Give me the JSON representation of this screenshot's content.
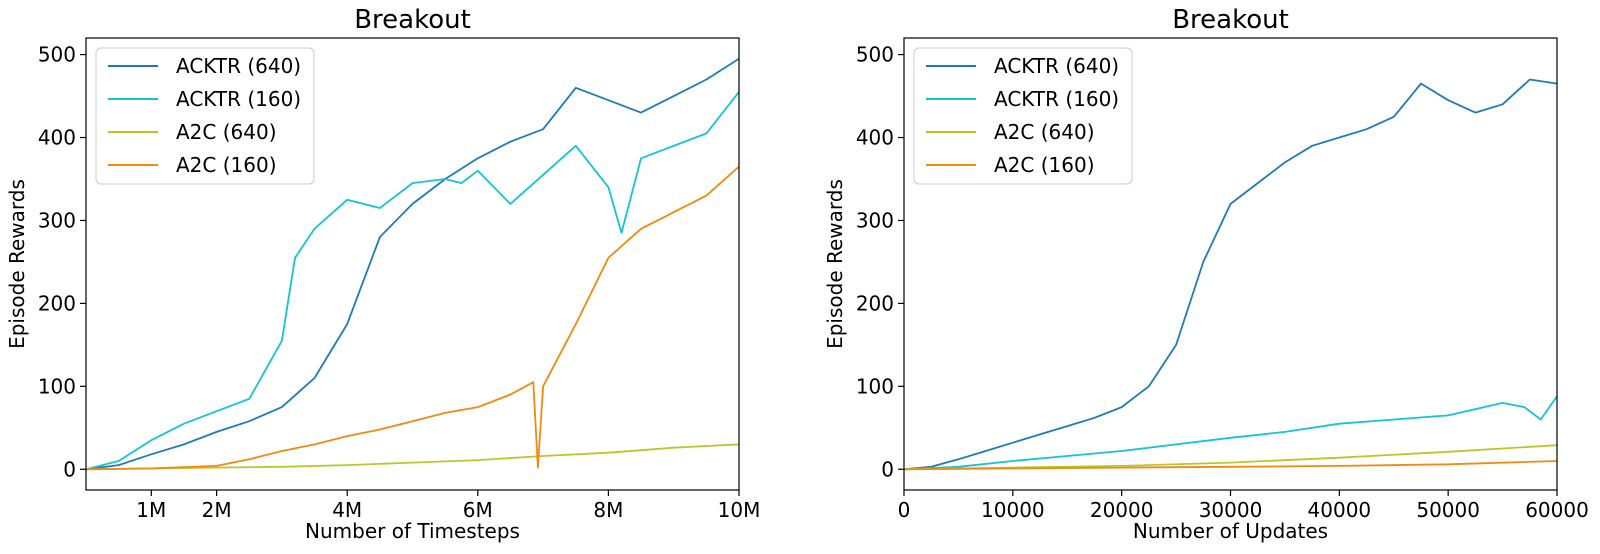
{
  "colors": {
    "ACKTR (640)": "#1f7bb5",
    "ACKTR (160)": "#17c3cf",
    "A2C (640)": "#bcc62a",
    "A2C (160)": "#f08a10"
  },
  "chart_data": [
    {
      "type": "line",
      "title": "Breakout",
      "xlabel": "Number of Timesteps",
      "ylabel": "Episode Rewards",
      "xlim": [
        0,
        10000000
      ],
      "ylim": [
        -25,
        520
      ],
      "xticks": [
        {
          "value": 1000000,
          "label": "1M"
        },
        {
          "value": 2000000,
          "label": "2M"
        },
        {
          "value": 4000000,
          "label": "4M"
        },
        {
          "value": 6000000,
          "label": "6M"
        },
        {
          "value": 8000000,
          "label": "8M"
        },
        {
          "value": 10000000,
          "label": "10M"
        }
      ],
      "yticks": [
        {
          "value": 0,
          "label": "0"
        },
        {
          "value": 100,
          "label": "100"
        },
        {
          "value": 200,
          "label": "200"
        },
        {
          "value": 300,
          "label": "300"
        },
        {
          "value": 400,
          "label": "400"
        },
        {
          "value": 500,
          "label": "500"
        }
      ],
      "grid": false,
      "legend": "top-left",
      "series": [
        {
          "name": "ACKTR (640)",
          "x": [
            0,
            500000,
            1000000,
            1500000,
            2000000,
            2500000,
            3000000,
            3500000,
            4000000,
            4500000,
            5000000,
            5500000,
            6000000,
            6500000,
            7000000,
            7500000,
            8000000,
            8500000,
            9000000,
            9500000,
            10000000
          ],
          "y": [
            0,
            5,
            18,
            30,
            45,
            58,
            75,
            110,
            175,
            280,
            320,
            350,
            375,
            395,
            410,
            460,
            445,
            430,
            450,
            470,
            495
          ]
        },
        {
          "name": "ACKTR (160)",
          "x": [
            0,
            500000,
            1000000,
            1500000,
            2000000,
            2500000,
            3000000,
            3200000,
            3500000,
            4000000,
            4500000,
            5000000,
            5500000,
            5750000,
            6000000,
            6500000,
            7000000,
            7500000,
            8000000,
            8200000,
            8500000,
            9000000,
            9500000,
            10000000
          ],
          "y": [
            0,
            10,
            35,
            55,
            70,
            85,
            155,
            255,
            290,
            325,
            315,
            345,
            350,
            345,
            360,
            320,
            355,
            390,
            340,
            285,
            375,
            390,
            405,
            455
          ]
        },
        {
          "name": "A2C (640)",
          "x": [
            0,
            1000000,
            2000000,
            3000000,
            4000000,
            5000000,
            6000000,
            7000000,
            8000000,
            9000000,
            10000000
          ],
          "y": [
            0,
            1,
            2,
            3,
            5,
            8,
            11,
            16,
            20,
            26,
            30
          ]
        },
        {
          "name": "A2C (160)",
          "x": [
            0,
            1000000,
            2000000,
            2500000,
            3000000,
            3500000,
            4000000,
            4500000,
            5000000,
            5500000,
            6000000,
            6500000,
            6850000,
            6920000,
            7000000,
            7500000,
            8000000,
            8500000,
            9000000,
            9500000,
            10000000
          ],
          "y": [
            0,
            1,
            4,
            12,
            22,
            30,
            40,
            48,
            58,
            68,
            75,
            90,
            105,
            2,
            100,
            175,
            255,
            290,
            310,
            330,
            365
          ]
        }
      ]
    },
    {
      "type": "line",
      "title": "Breakout",
      "xlabel": "Number of Updates",
      "ylabel": "Episode Rewards",
      "xlim": [
        0,
        60000
      ],
      "ylim": [
        -25,
        520
      ],
      "xticks": [
        {
          "value": 0,
          "label": "0"
        },
        {
          "value": 10000,
          "label": "10000"
        },
        {
          "value": 20000,
          "label": "20000"
        },
        {
          "value": 30000,
          "label": "30000"
        },
        {
          "value": 40000,
          "label": "40000"
        },
        {
          "value": 50000,
          "label": "50000"
        },
        {
          "value": 60000,
          "label": "60000"
        }
      ],
      "yticks": [
        {
          "value": 0,
          "label": "0"
        },
        {
          "value": 100,
          "label": "100"
        },
        {
          "value": 200,
          "label": "200"
        },
        {
          "value": 300,
          "label": "300"
        },
        {
          "value": 400,
          "label": "400"
        },
        {
          "value": 500,
          "label": "500"
        }
      ],
      "grid": false,
      "legend": "top-left",
      "series": [
        {
          "name": "ACKTR (640)",
          "x": [
            0,
            2500,
            5000,
            7500,
            10000,
            12500,
            15000,
            17500,
            20000,
            22500,
            25000,
            27500,
            30000,
            32500,
            35000,
            37500,
            40000,
            42500,
            45000,
            47500,
            50000,
            52500,
            55000,
            57500,
            60000
          ],
          "y": [
            0,
            3,
            12,
            22,
            32,
            42,
            52,
            62,
            75,
            100,
            150,
            250,
            320,
            345,
            370,
            390,
            400,
            410,
            425,
            465,
            445,
            430,
            440,
            470,
            465
          ]
        },
        {
          "name": "ACKTR (160)",
          "x": [
            0,
            5000,
            10000,
            15000,
            20000,
            25000,
            30000,
            35000,
            40000,
            45000,
            50000,
            55000,
            57000,
            58500,
            60000
          ],
          "y": [
            0,
            3,
            10,
            16,
            22,
            30,
            38,
            45,
            55,
            60,
            65,
            80,
            75,
            60,
            88
          ]
        },
        {
          "name": "A2C (640)",
          "x": [
            0,
            10000,
            20000,
            30000,
            40000,
            50000,
            60000
          ],
          "y": [
            0,
            2,
            4,
            8,
            14,
            21,
            29
          ]
        },
        {
          "name": "A2C (160)",
          "x": [
            0,
            10000,
            20000,
            30000,
            40000,
            50000,
            60000
          ],
          "y": [
            0,
            1,
            2,
            3,
            4,
            6,
            10
          ]
        }
      ]
    }
  ]
}
